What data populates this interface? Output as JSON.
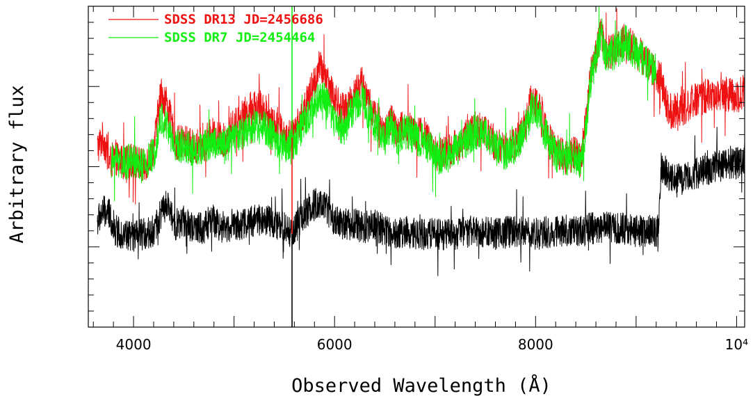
{
  "chart_data": {
    "type": "line",
    "xlabel": "Observed Wavelength (Å)",
    "ylabel": "Arbitrary flux",
    "xlim": [
      3550,
      10080
    ],
    "ylim": [
      0,
      10
    ],
    "x_ticks": [
      {
        "value": 4000,
        "label": "4000"
      },
      {
        "value": 6000,
        "label": "6000"
      },
      {
        "value": 8000,
        "label": "8000"
      },
      {
        "value": 10000,
        "label": "10⁴"
      }
    ],
    "y_tick_labels_shown": false,
    "grid": false,
    "legend_position": "top-left",
    "series": [
      {
        "name": "SDSS DR13 JD=2456686",
        "color": "#ee1111",
        "noise": 0.55,
        "x": [
          3640,
          3700,
          3760,
          3820,
          3900,
          4000,
          4100,
          4200,
          4270,
          4330,
          4420,
          4500,
          4600,
          4700,
          4780,
          4900,
          5000,
          5100,
          5200,
          5300,
          5400,
          5500,
          5580,
          5650,
          5750,
          5850,
          5920,
          6000,
          6100,
          6200,
          6280,
          6350,
          6420,
          6500,
          6560,
          6620,
          6700,
          6800,
          6900,
          7000,
          7100,
          7200,
          7300,
          7400,
          7500,
          7600,
          7700,
          7800,
          7900,
          7960,
          8020,
          8100,
          8200,
          8300,
          8400,
          8450,
          8500,
          8550,
          8600,
          8650,
          8700,
          8800,
          8900,
          9000,
          9100,
          9200,
          9250,
          9300,
          9350,
          9450,
          9600,
          9800,
          10000,
          10080
        ],
        "y": [
          5.6,
          5.9,
          5.1,
          5.3,
          5.1,
          5.2,
          5.0,
          5.5,
          7.3,
          7.0,
          5.7,
          5.8,
          5.6,
          5.7,
          6.0,
          5.8,
          6.3,
          6.6,
          6.9,
          6.8,
          6.3,
          6.0,
          5.9,
          6.4,
          7.2,
          8.1,
          7.8,
          7.1,
          6.7,
          7.3,
          7.6,
          6.9,
          6.5,
          6.0,
          6.5,
          6.0,
          6.3,
          6.1,
          6.0,
          5.4,
          5.4,
          5.6,
          5.9,
          6.2,
          6.1,
          5.7,
          5.5,
          5.7,
          6.4,
          7.1,
          7.0,
          6.2,
          5.5,
          5.3,
          5.4,
          5.2,
          6.5,
          7.9,
          8.5,
          9.2,
          8.5,
          8.7,
          9.0,
          8.6,
          8.3,
          7.9,
          7.7,
          7.0,
          6.7,
          6.8,
          7.1,
          7.3,
          7.2,
          7.4
        ]
      },
      {
        "name": "SDSS DR7  JD=2454464",
        "color": "#11ee11",
        "noise": 0.55,
        "x": [
          3780,
          3820,
          3900,
          4000,
          4100,
          4200,
          4270,
          4330,
          4420,
          4500,
          4600,
          4700,
          4780,
          4900,
          5000,
          5100,
          5200,
          5300,
          5400,
          5500,
          5580,
          5650,
          5750,
          5850,
          5920,
          6000,
          6100,
          6200,
          6280,
          6350,
          6420,
          6500,
          6560,
          6620,
          6700,
          6800,
          6900,
          7000,
          7100,
          7200,
          7300,
          7400,
          7500,
          7600,
          7700,
          7800,
          7900,
          7960,
          8020,
          8100,
          8200,
          8300,
          8400,
          8450,
          8500,
          8550,
          8600,
          8650,
          8700,
          8800,
          8900,
          9000,
          9100,
          9200
        ],
        "y": [
          5.1,
          5.3,
          5.1,
          5.2,
          5.0,
          5.4,
          6.5,
          6.3,
          5.6,
          5.7,
          5.5,
          5.6,
          5.8,
          5.6,
          5.9,
          6.1,
          6.3,
          6.2,
          5.9,
          5.7,
          5.6,
          6.1,
          6.6,
          7.2,
          7.0,
          6.4,
          6.2,
          6.9,
          7.1,
          6.6,
          6.2,
          5.9,
          6.3,
          5.9,
          6.1,
          5.9,
          5.8,
          5.3,
          5.3,
          5.5,
          5.8,
          6.1,
          6.0,
          5.6,
          5.4,
          5.6,
          6.2,
          6.8,
          6.7,
          6.0,
          5.4,
          5.2,
          5.3,
          5.1,
          6.3,
          7.7,
          8.4,
          9.0,
          8.4,
          8.6,
          8.9,
          8.5,
          8.3,
          8.0
        ]
      },
      {
        "name": "",
        "color": "#000000",
        "noise": 0.5,
        "x": [
          3640,
          3700,
          3760,
          3820,
          3900,
          4000,
          4100,
          4200,
          4270,
          4330,
          4420,
          4500,
          4600,
          4700,
          4780,
          4900,
          5000,
          5100,
          5200,
          5300,
          5400,
          5500,
          5580,
          5650,
          5750,
          5850,
          5920,
          6000,
          6100,
          6200,
          6300,
          6400,
          6500,
          6600,
          6700,
          6800,
          6900,
          7000,
          7200,
          7400,
          7600,
          7800,
          8000,
          8200,
          8400,
          8600,
          8800,
          9000,
          9150,
          9220,
          9250,
          9300,
          9350,
          9450,
          9600,
          9800,
          10000,
          10080
        ],
        "y": [
          3.3,
          3.6,
          3.5,
          3.0,
          2.9,
          2.8,
          2.9,
          3.0,
          3.5,
          3.8,
          3.2,
          3.3,
          3.0,
          3.1,
          3.3,
          3.1,
          3.2,
          3.2,
          3.3,
          3.4,
          3.2,
          3.1,
          2.9,
          3.3,
          3.7,
          3.9,
          3.7,
          3.3,
          3.2,
          3.2,
          3.1,
          3.2,
          3.0,
          2.9,
          3.0,
          2.9,
          2.9,
          2.9,
          2.9,
          3.0,
          2.9,
          3.0,
          2.9,
          3.0,
          3.0,
          3.1,
          3.1,
          3.0,
          3.0,
          3.0,
          5.0,
          4.9,
          4.6,
          4.6,
          4.8,
          5.0,
          5.1,
          5.3
        ]
      }
    ],
    "spikes": [
      {
        "series": 1,
        "x": 5577,
        "y": 10.3
      },
      {
        "series": 2,
        "x": 5577,
        "y": 0.0
      },
      {
        "series": 0,
        "x": 5577,
        "y": 2.9
      }
    ]
  }
}
